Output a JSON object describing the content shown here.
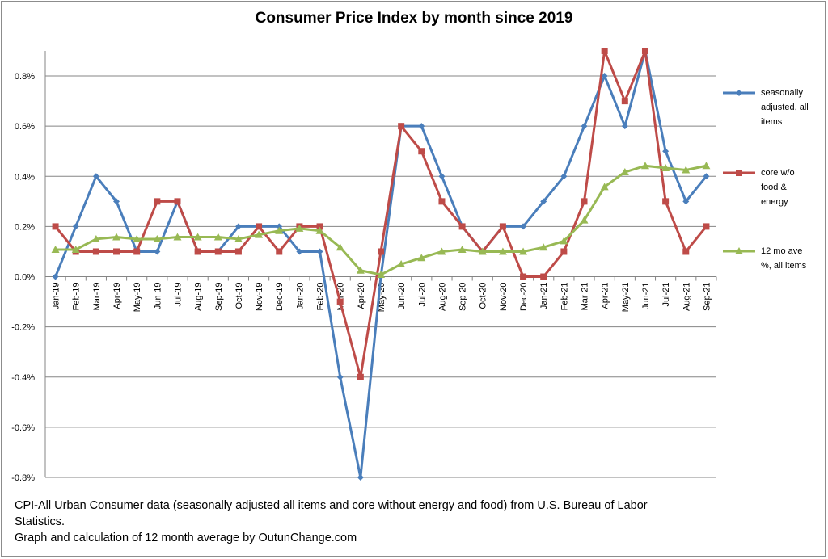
{
  "chart_data": {
    "type": "line",
    "title": "Consumer Price Index by month since 2019",
    "categories": [
      "Jan-19",
      "Feb-19",
      "Mar-19",
      "Apr-19",
      "May-19",
      "Jun-19",
      "Jul-19",
      "Aug-19",
      "Sep-19",
      "Oct-19",
      "Nov-19",
      "Dec-19",
      "Jan-20",
      "Feb-20",
      "Mar-20",
      "Apr-20",
      "May-20",
      "Jun-20",
      "Jul-20",
      "Aug-20",
      "Sep-20",
      "Oct-20",
      "Nov-20",
      "Dec-20",
      "Jan-21",
      "Feb-21",
      "Mar-21",
      "Apr-21",
      "May-21",
      "Jun-21",
      "Jul-21",
      "Aug-21",
      "Sep-21"
    ],
    "ylim": [
      -0.8,
      0.9
    ],
    "yticks": [
      -0.8,
      -0.6,
      -0.4,
      -0.2,
      0.0,
      0.2,
      0.4,
      0.6,
      0.8
    ],
    "ytick_labels": [
      "-0.8%",
      "-0.6%",
      "-0.4%",
      "-0.2%",
      "0.0%",
      "0.2%",
      "0.4%",
      "0.6%",
      "0.8%"
    ],
    "grid": true,
    "legend_position": "right",
    "series": [
      {
        "name": "seasonally adjusted, all items",
        "legend_lines": [
          "seasonally",
          "adjusted, all",
          "items"
        ],
        "color": "#4a7ebb",
        "marker": "diamond",
        "values": [
          0.0,
          0.2,
          0.4,
          0.3,
          0.1,
          0.1,
          0.3,
          0.1,
          0.1,
          0.2,
          0.2,
          0.2,
          0.1,
          0.1,
          -0.4,
          -0.8,
          0.0,
          0.6,
          0.6,
          0.4,
          0.2,
          0.1,
          0.2,
          0.2,
          0.3,
          0.4,
          0.6,
          0.8,
          0.6,
          0.9,
          0.5,
          0.3,
          0.4
        ]
      },
      {
        "name": "core w/o food & energy",
        "legend_lines": [
          "core w/o",
          "food &",
          "energy"
        ],
        "color": "#be4b48",
        "marker": "square",
        "values": [
          0.2,
          0.1,
          0.1,
          0.1,
          0.1,
          0.3,
          0.3,
          0.1,
          0.1,
          0.1,
          0.2,
          0.1,
          0.2,
          0.2,
          -0.1,
          -0.4,
          0.1,
          0.6,
          0.5,
          0.3,
          0.2,
          0.1,
          0.2,
          0.0,
          0.0,
          0.1,
          0.3,
          0.9,
          0.7,
          0.9,
          0.3,
          0.1,
          0.2
        ]
      },
      {
        "name": "12 mo ave %, all items",
        "legend_lines": [
          "12 mo ave",
          "%, all items"
        ],
        "color": "#98b954",
        "marker": "triangle",
        "values": [
          0.108,
          0.108,
          0.15,
          0.158,
          0.15,
          0.15,
          0.158,
          0.158,
          0.158,
          0.15,
          0.167,
          0.183,
          0.192,
          0.183,
          0.117,
          0.025,
          0.008,
          0.05,
          0.075,
          0.1,
          0.108,
          0.1,
          0.1,
          0.1,
          0.117,
          0.142,
          0.225,
          0.358,
          0.417,
          0.442,
          0.433,
          0.425,
          0.442
        ]
      }
    ]
  },
  "footnote": {
    "line1": "CPI-All Urban Consumer data (seasonally adjusted all items and core without energy and food) from U.S. Bureau of Labor",
    "line2": "Statistics.",
    "line3": "Graph and calculation of 12 month average by OutunChange.com"
  }
}
